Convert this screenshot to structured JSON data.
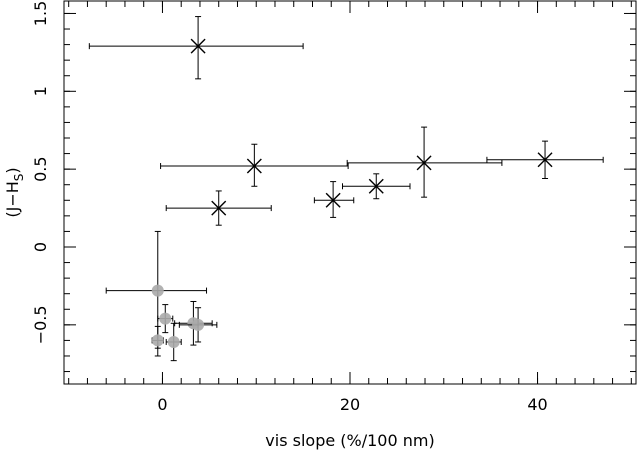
{
  "chart_data": {
    "type": "scatter",
    "xlabel": "vis slope (%/100 nm)",
    "ylabel": {
      "main": "(J−H",
      "sub": "S",
      "close": ")"
    },
    "xlim": [
      -10.5,
      50.5
    ],
    "ylim": [
      -0.88,
      1.58
    ],
    "x_ticks": [
      0,
      20,
      40
    ],
    "x_tick_labels": [
      "0",
      "20",
      "40"
    ],
    "y_ticks": [
      -0.5,
      0,
      0.5,
      1,
      1.5
    ],
    "y_tick_labels": [
      "−0.5",
      "0",
      "0.5",
      "1",
      "1.5"
    ],
    "x_minor_step": 2,
    "y_minor_step": 0.1,
    "grid": false,
    "series": [
      {
        "marker": "cross",
        "color": "#000000",
        "points": [
          {
            "x": 3.8,
            "y": 1.29,
            "xerr": [
              11.6,
              11.2
            ],
            "yerr": [
              0.21,
              0.19
            ]
          },
          {
            "x": 9.8,
            "y": 0.52,
            "xerr": [
              10.0,
              10.0
            ],
            "yerr": [
              0.13,
              0.14
            ]
          },
          {
            "x": 6.0,
            "y": 0.25,
            "xerr": [
              5.6,
              5.6
            ],
            "yerr": [
              0.11,
              0.11
            ]
          },
          {
            "x": 18.2,
            "y": 0.3,
            "xerr": [
              2.0,
              2.2
            ],
            "yerr": [
              0.11,
              0.12
            ]
          },
          {
            "x": 22.8,
            "y": 0.39,
            "xerr": [
              3.6,
              3.6
            ],
            "yerr": [
              0.08,
              0.08
            ]
          },
          {
            "x": 27.9,
            "y": 0.54,
            "xerr": [
              8.2,
              8.3
            ],
            "yerr": [
              0.22,
              0.23
            ]
          },
          {
            "x": 40.8,
            "y": 0.56,
            "xerr": [
              6.2,
              6.2
            ],
            "yerr": [
              0.12,
              0.12
            ]
          }
        ]
      },
      {
        "marker": "circle",
        "color": "#aaaaaa",
        "points": [
          {
            "x": -0.5,
            "y": -0.28,
            "xerr": [
              5.5,
              5.2
            ],
            "yerr": [
              0.37,
              0.38
            ]
          },
          {
            "x": 0.3,
            "y": -0.46,
            "xerr": [
              0.8,
              0.8
            ],
            "yerr": [
              0.09,
              0.09
            ]
          },
          {
            "x": -0.5,
            "y": -0.6,
            "xerr": [
              0.6,
              0.6
            ],
            "yerr": [
              0.1,
              0.09
            ]
          },
          {
            "x": 1.2,
            "y": -0.61,
            "xerr": [
              0.8,
              0.8
            ],
            "yerr": [
              0.12,
              0.12
            ]
          },
          {
            "x": 3.3,
            "y": -0.49,
            "xerr": [
              2.0,
              2.0
            ],
            "yerr": [
              0.14,
              0.14
            ]
          },
          {
            "x": 3.8,
            "y": -0.5,
            "xerr": [
              2.0,
              2.0
            ],
            "yerr": [
              0.11,
              0.11
            ]
          }
        ]
      }
    ]
  }
}
